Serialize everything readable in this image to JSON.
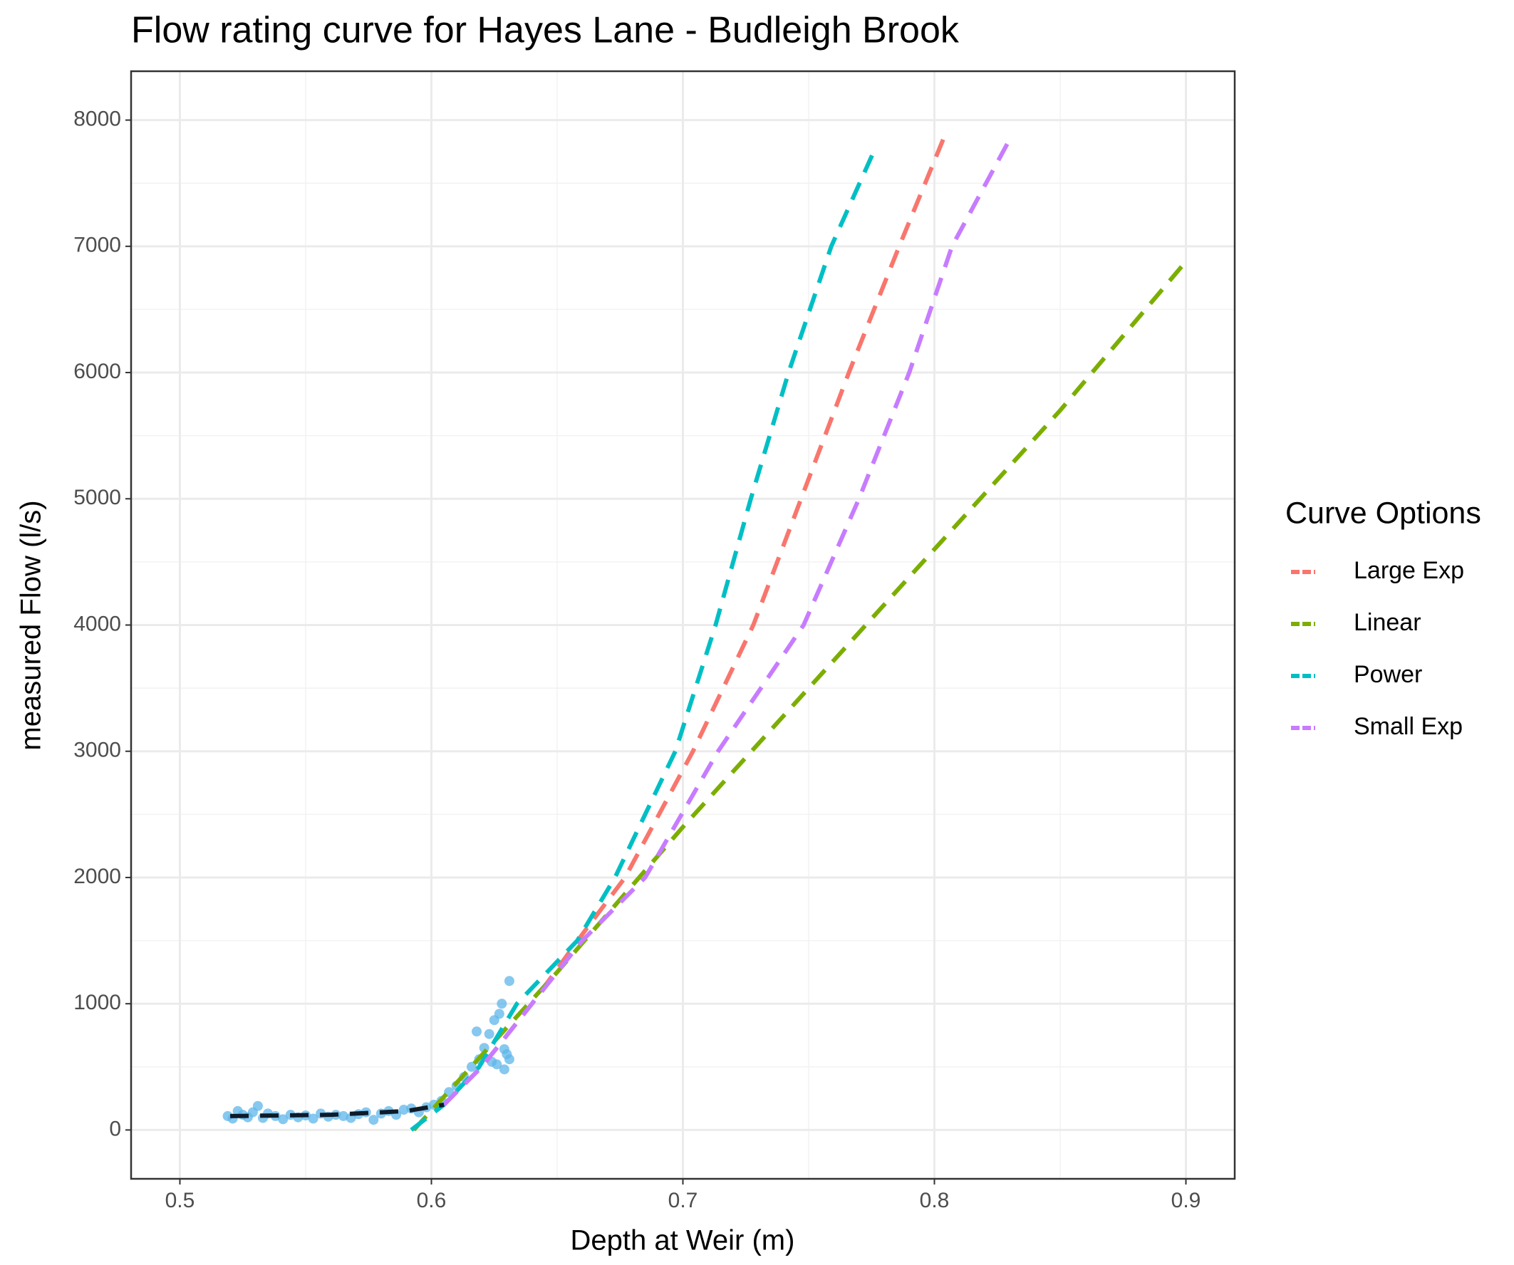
{
  "chart_data": {
    "type": "scatter",
    "title": "Flow rating curve for Hayes Lane - Budleigh Brook",
    "x_label": "Depth at Weir (m)",
    "y_label": "measured Flow (l/s)",
    "legend_title": "Curve Options",
    "legend_position": "right",
    "grid": true,
    "xlim": [
      0.4806,
      0.9194
    ],
    "ylim": [
      -387,
      8387
    ],
    "xticks": [
      0.5,
      0.6,
      0.7,
      0.8,
      0.9
    ],
    "yticks": [
      0,
      1000,
      2000,
      3000,
      4000,
      5000,
      6000,
      7000,
      8000
    ],
    "x_minor_ticks": [
      0.55,
      0.65,
      0.75,
      0.85
    ],
    "y_minor_ticks": [
      500,
      1500,
      2500,
      3500,
      4500,
      5500,
      6500,
      7500
    ],
    "points": {
      "color": "#5db6ea",
      "x": [
        0.519,
        0.521,
        0.523,
        0.525,
        0.527,
        0.529,
        0.531,
        0.533,
        0.535,
        0.538,
        0.541,
        0.544,
        0.547,
        0.55,
        0.553,
        0.556,
        0.559,
        0.562,
        0.565,
        0.568,
        0.571,
        0.574,
        0.577,
        0.58,
        0.583,
        0.586,
        0.589,
        0.592,
        0.595,
        0.598,
        0.601,
        0.604,
        0.607,
        0.61,
        0.613,
        0.616,
        0.619,
        0.621,
        0.623,
        0.625,
        0.627,
        0.628,
        0.629,
        0.63,
        0.631,
        0.631,
        0.629,
        0.626,
        0.624,
        0.618
      ],
      "y": [
        110,
        90,
        150,
        120,
        100,
        140,
        190,
        95,
        130,
        110,
        85,
        120,
        100,
        115,
        90,
        130,
        105,
        120,
        110,
        95,
        125,
        140,
        80,
        130,
        150,
        120,
        160,
        170,
        140,
        180,
        200,
        230,
        300,
        350,
        420,
        500,
        560,
        650,
        760,
        870,
        920,
        1000,
        640,
        600,
        1180,
        560,
        480,
        520,
        540,
        780
      ]
    },
    "baseline": {
      "color": "#0d1b2a",
      "x": [
        0.52,
        0.56,
        0.59,
        0.605
      ],
      "y": [
        110,
        120,
        150,
        200
      ]
    },
    "series": [
      {
        "name": "Large Exp",
        "color": "#f8766d",
        "x": [
          0.605,
          0.62,
          0.64,
          0.66,
          0.677,
          0.704,
          0.728,
          0.747,
          0.766,
          0.786,
          0.805
        ],
        "values": [
          200,
          500,
          1000,
          1550,
          2000,
          3000,
          4000,
          5000,
          6000,
          7000,
          7920
        ]
      },
      {
        "name": "Linear",
        "color": "#7cae00",
        "x": [
          0.593,
          0.65,
          0.7,
          0.75,
          0.8,
          0.85,
          0.9
        ],
        "values": [
          0,
          1250,
          2400,
          3500,
          4600,
          5700,
          6880
        ]
      },
      {
        "name": "Power",
        "color": "#00bfc4",
        "x": [
          0.592,
          0.605,
          0.619,
          0.634,
          0.658,
          0.673,
          0.697,
          0.713,
          0.727,
          0.742,
          0.759,
          0.777
        ],
        "values": [
          0,
          200,
          500,
          1000,
          1500,
          2000,
          3000,
          4000,
          5000,
          6000,
          7000,
          7800
        ]
      },
      {
        "name": "Small Exp",
        "color": "#c77cff",
        "x": [
          0.605,
          0.62,
          0.64,
          0.66,
          0.685,
          0.714,
          0.748,
          0.77,
          0.79,
          0.807,
          0.83
        ],
        "values": [
          200,
          500,
          1000,
          1500,
          2000,
          3000,
          4000,
          5000,
          6000,
          7000,
          7850
        ]
      }
    ]
  }
}
